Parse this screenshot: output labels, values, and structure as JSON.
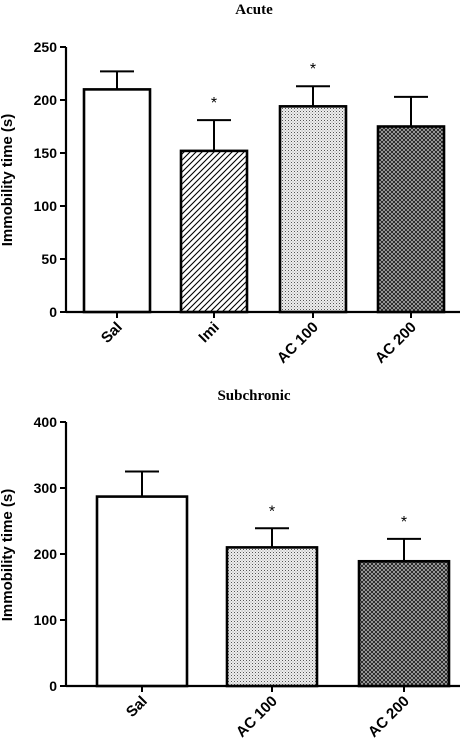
{
  "chart_data": [
    {
      "type": "bar",
      "title": "Acute",
      "ylabel": "Immobility time (s)",
      "xlabel": "",
      "ylim": [
        0,
        250
      ],
      "yticks": [
        0,
        50,
        100,
        150,
        200,
        250
      ],
      "categories": [
        "Sal",
        "Imi",
        "AC 100",
        "AC 200"
      ],
      "values": [
        210,
        152,
        194,
        175
      ],
      "errors": [
        17,
        29,
        19,
        28
      ],
      "significance": [
        "",
        "*",
        "*",
        ""
      ],
      "fills": [
        "white",
        "diagonal-hatch",
        "light-dots",
        "dark-crosshatch"
      ],
      "grid": false
    },
    {
      "type": "bar",
      "title": "Subchronic",
      "ylabel": "Immobility time (s)",
      "xlabel": "",
      "ylim": [
        0,
        400
      ],
      "yticks": [
        0,
        100,
        200,
        300,
        400
      ],
      "categories": [
        "Sal",
        "AC 100",
        "AC 200"
      ],
      "values": [
        287,
        210,
        189
      ],
      "errors": [
        38,
        29,
        34
      ],
      "significance": [
        "",
        "*",
        "*"
      ],
      "fills": [
        "white",
        "light-dots",
        "dark-crosshatch"
      ],
      "grid": false
    }
  ]
}
